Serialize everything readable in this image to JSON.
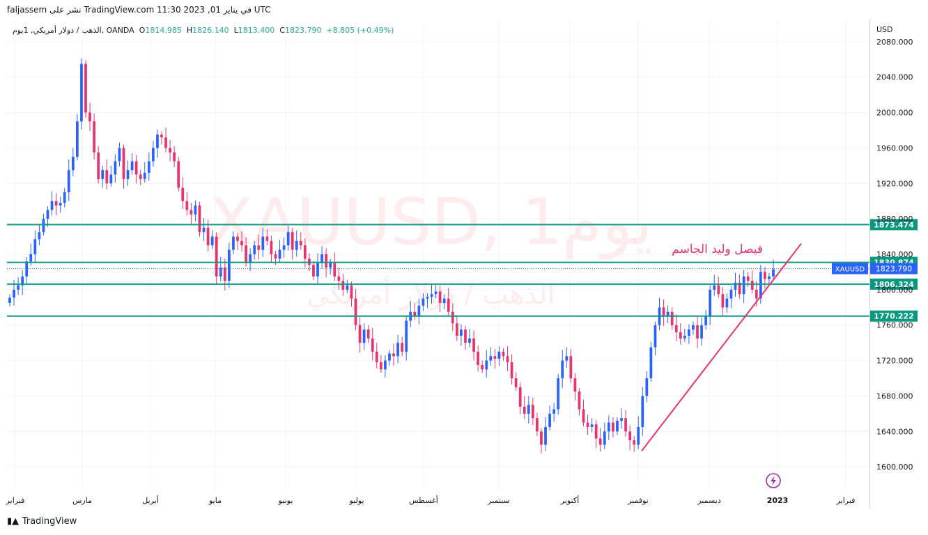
{
  "header": {
    "publish_line": "faljassem نشر على TradingView.com في يناير 01, 2023 11:30 UTC"
  },
  "legend": {
    "symbol": "الذهب / دولار أمريكي, 1يوم, OANDA",
    "open_label": "O",
    "open": "1814.985",
    "high_label": "H",
    "high": "1826.140",
    "low_label": "L",
    "low": "1813.400",
    "close_label": "C",
    "close": "1823.790",
    "change": "+8.805 (+0.49%)"
  },
  "watermark": {
    "main": "XAUUSD, 1يوم",
    "sub": "الذهب / دولار أمريكي"
  },
  "annotation": {
    "author_text": "فيصل وليد الجاسم"
  },
  "axis": {
    "currency": "USD"
  },
  "footer": {
    "brand": "TradingView"
  },
  "colors": {
    "up": "#2962ff",
    "down": "#e8336d",
    "level_line": "#089981",
    "trendline": "#e8336d",
    "price_tag": "#2962ff"
  },
  "chart_data": {
    "type": "candlestick",
    "ylim": [
      1575,
      2105
    ],
    "y_ticks": [
      1600,
      1640,
      1680,
      1720,
      1760,
      1800,
      1840,
      1880,
      1920,
      1960,
      2000,
      2040,
      2080
    ],
    "y_tick_labels": [
      "1600.000",
      "1640.000",
      "1680.000",
      "1720.000",
      "1760.000",
      "1800.000",
      "1840.000",
      "1880.000",
      "1920.000",
      "1960.000",
      "2000.000",
      "2040.000",
      "2080.000"
    ],
    "x_labels": [
      "فبراير",
      "مارس",
      "أبريل",
      "مايو",
      "يونيو",
      "يوليو",
      "أغسطس",
      "سبتمبر",
      "أكتوبر",
      "نوفمبر",
      "ديسمبر",
      "2023",
      "فبراير"
    ],
    "horizontal_levels": [
      {
        "value": 1873.474,
        "label": "1873.474"
      },
      {
        "value": 1830.874,
        "label": "1830.874"
      },
      {
        "value": 1806.324,
        "label": "1806.324"
      },
      {
        "value": 1770.222,
        "label": "1770.222"
      }
    ],
    "last_price": {
      "value": 1823.79,
      "label": "1823.790",
      "symbol": "XAUUSD"
    },
    "trendline": {
      "from": {
        "date": "2022-11-03",
        "price": 1618
      },
      "to": {
        "date": "2023-01-12",
        "price": 1852
      }
    },
    "close_series": [
      1791,
      1800,
      1805,
      1815,
      1832,
      1840,
      1857,
      1865,
      1880,
      1890,
      1900,
      1895,
      1898,
      1910,
      1935,
      1950,
      1990,
      2055,
      2000,
      1990,
      1955,
      1925,
      1935,
      1920,
      1930,
      1945,
      1960,
      1925,
      1935,
      1945,
      1930,
      1925,
      1932,
      1945,
      1960,
      1975,
      1972,
      1960,
      1955,
      1945,
      1915,
      1900,
      1890,
      1885,
      1895,
      1865,
      1870,
      1850,
      1860,
      1815,
      1825,
      1810,
      1845,
      1860,
      1855,
      1850,
      1830,
      1840,
      1850,
      1845,
      1860,
      1855,
      1840,
      1835,
      1845,
      1850,
      1865,
      1845,
      1855,
      1850,
      1835,
      1828,
      1815,
      1830,
      1840,
      1825,
      1830,
      1815,
      1810,
      1800,
      1805,
      1790,
      1760,
      1740,
      1755,
      1745,
      1730,
      1718,
      1710,
      1720,
      1728,
      1725,
      1740,
      1730,
      1765,
      1775,
      1770,
      1782,
      1790,
      1792,
      1795,
      1798,
      1785,
      1790,
      1775,
      1762,
      1748,
      1755,
      1740,
      1745,
      1730,
      1715,
      1710,
      1720,
      1725,
      1722,
      1730,
      1725,
      1718,
      1700,
      1690,
      1668,
      1660,
      1670,
      1655,
      1640,
      1625,
      1645,
      1660,
      1665,
      1700,
      1720,
      1725,
      1700,
      1685,
      1665,
      1650,
      1645,
      1648,
      1632,
      1625,
      1640,
      1650,
      1640,
      1652,
      1655,
      1640,
      1630,
      1625,
      1645,
      1680,
      1700,
      1735,
      1760,
      1780,
      1770,
      1775,
      1760,
      1752,
      1745,
      1748,
      1755,
      1760,
      1745,
      1760,
      1770,
      1800,
      1805,
      1795,
      1780,
      1790,
      1800,
      1808,
      1795,
      1815,
      1810,
      1800,
      1790,
      1820,
      1812,
      1815,
      1823
    ]
  }
}
